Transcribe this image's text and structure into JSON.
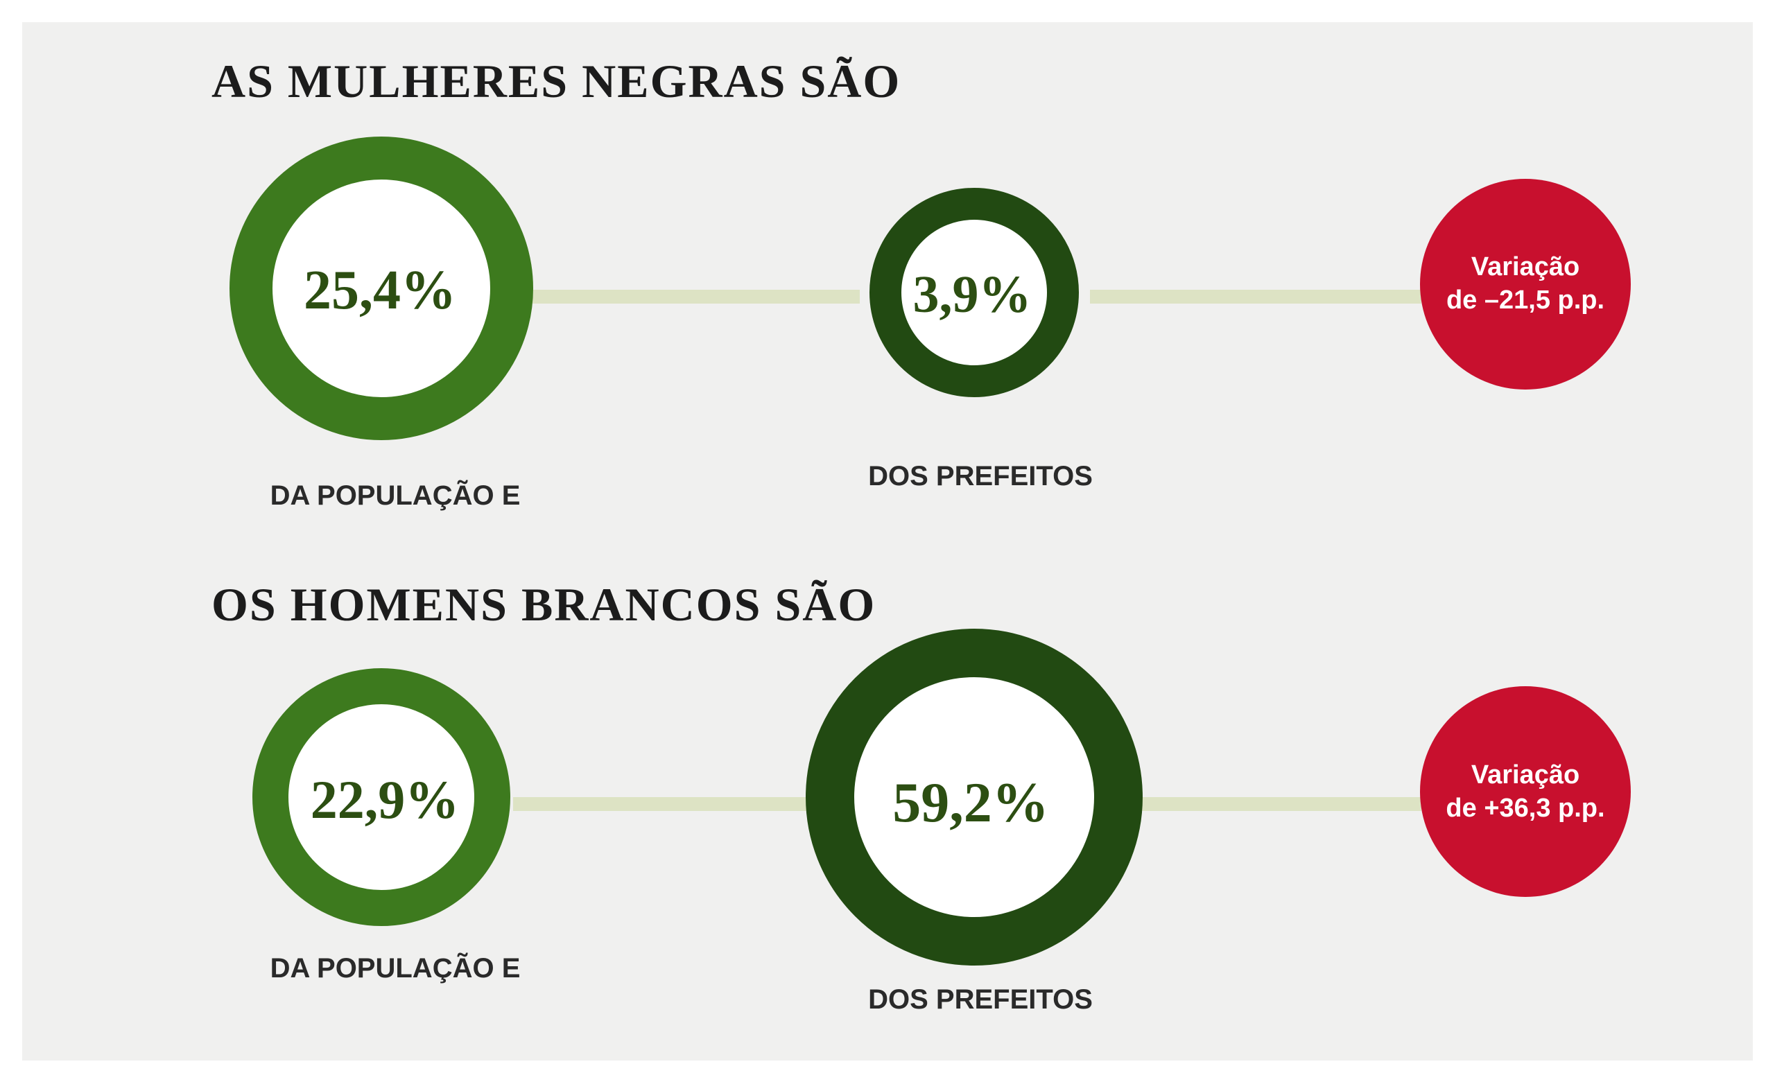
{
  "chart_data": {
    "type": "other",
    "groups": [
      {
        "title": "AS MULHERES NEGRAS SÃO",
        "population": {
          "value": 25.4,
          "label": "25,4%",
          "caption": "DA POPULAÇÃO E"
        },
        "mayors": {
          "value": 3.9,
          "label": "3,9%",
          "caption": "DOS PREFEITOS"
        },
        "variation": {
          "value": -21.5,
          "line1": "Variação",
          "line2": "de –21,5 p.p."
        }
      },
      {
        "title": "OS HOMENS BRANCOS SÃO",
        "population": {
          "value": 22.9,
          "label": "22,9%",
          "caption": "DA POPULAÇÃO E"
        },
        "mayors": {
          "value": 59.2,
          "label": "59,2%",
          "caption": "DOS PREFEITOS"
        },
        "variation": {
          "value": 36.3,
          "line1": "Variação",
          "line2": "de +36,3 p.p."
        }
      }
    ]
  },
  "colors": {
    "background": "#f0f0ef",
    "ring_bright": "#3d7a1e",
    "ring_dark": "#224a12",
    "connector": "#dde3c4",
    "variation_badge": "#c8102e",
    "heading_text": "#1c1c1c",
    "value_text": "#2c4e12"
  }
}
